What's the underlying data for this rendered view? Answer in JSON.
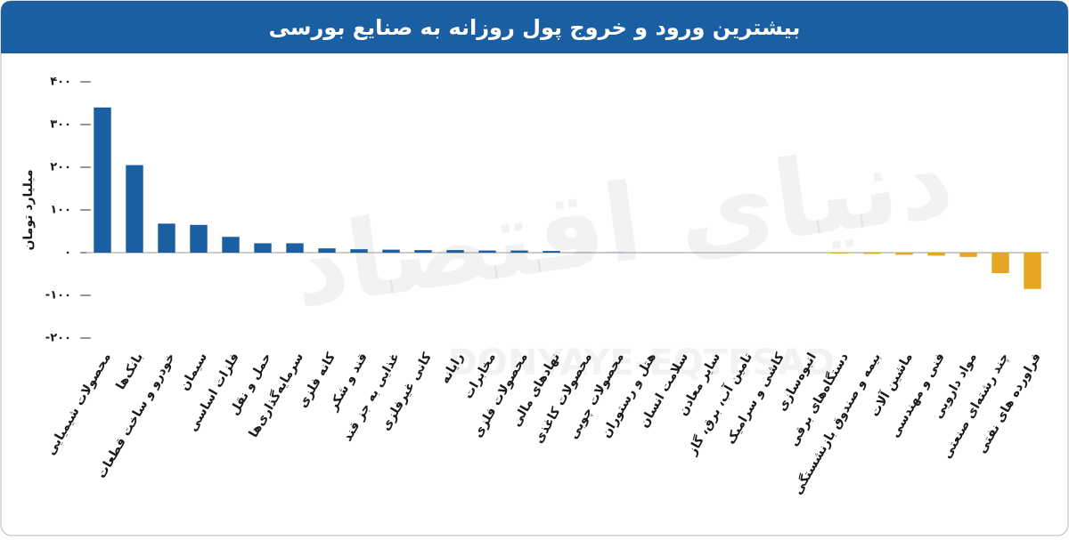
{
  "chart_data": {
    "type": "bar",
    "title": "بیشترین ورود و خروج پول روزانه به صنایع بورسی",
    "y_label": "میلیارد تومان",
    "watermark": "دنیای اقتصاد",
    "watermark_latin": "DONYAYE-EQTESAD",
    "categories": [
      "محصولات شیمیایی",
      "بانک‌ها",
      "خودرو و ساخت قطعات",
      "سیمان",
      "فلزات اساسی",
      "حمل و نقل",
      "سرمایه‌گذاری‌ها",
      "کانه فلزی",
      "قند و شکر",
      "غذایی به جز قند",
      "کانی غیرفلزی",
      "رایانه",
      "مخابرات",
      "محصولات فلزی",
      "نهادهای مالی",
      "محصولات کاغذی",
      "محصولات چوبی",
      "هتل و رستوران",
      "سلامت انسان",
      "سایر معادن",
      "تامین آب، برق، گاز",
      "کاشی و سرامیک",
      "انبوه‌سازی",
      "دستگاه‌های برقی",
      "بیمه و صندوق بازنشستگی",
      "ماشین آلات",
      "فنی و مهندسی",
      "مواد دارویی",
      "چند رشته‌ای صنعتی",
      "فراورده های نفتی"
    ],
    "values": [
      340,
      205,
      68,
      65,
      37,
      22,
      22,
      10,
      8,
      7,
      6,
      6,
      5,
      5,
      4,
      0.5,
      0.5,
      0,
      0,
      0,
      0,
      0,
      0,
      -2,
      -3,
      -5,
      -7,
      -10,
      -48,
      -85
    ],
    "color": "#1b5fa3",
    "negative_color": "#e6a623",
    "ylim": [
      -200,
      400
    ],
    "yticks": [
      {
        "value": 400,
        "label": "۴۰۰"
      },
      {
        "value": 300,
        "label": "۳۰۰"
      },
      {
        "value": 200,
        "label": "۲۰۰"
      },
      {
        "value": 100,
        "label": "۱۰۰"
      },
      {
        "value": 0,
        "label": "۰"
      },
      {
        "value": -100,
        "label": "-۱۰۰"
      },
      {
        "value": -200,
        "label": "-۲۰۰"
      }
    ]
  }
}
